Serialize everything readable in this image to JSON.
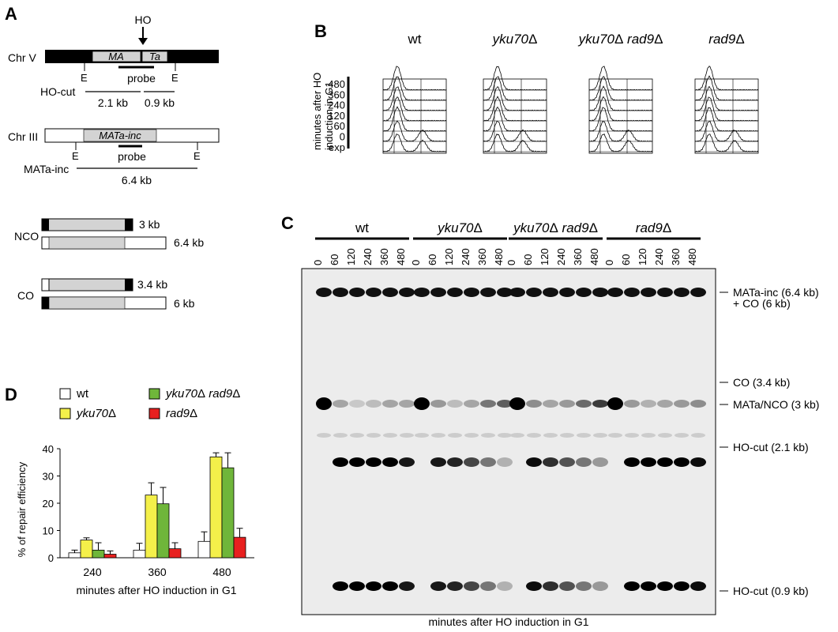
{
  "panels": {
    "a": "A",
    "b": "B",
    "c": "C",
    "d": "D"
  },
  "panel_a": {
    "ho_label": "HO",
    "chr_v": {
      "label": "Chr V",
      "ma": "MA",
      "ta": "Ta",
      "probe": "probe",
      "e1": "E",
      "e2": "E",
      "frag_label": "HO-cut",
      "frag1": "2.1 kb",
      "frag2": "0.9 kb"
    },
    "chr_iii": {
      "label": "Chr III",
      "inner": "MATa-inc",
      "probe": "probe",
      "e1": "E",
      "e2": "E",
      "frag_label": "MATa-inc",
      "frag": "6.4 kb"
    },
    "nco": {
      "label": "NCO",
      "size1": "3 kb",
      "size2": "6.4 kb"
    },
    "co": {
      "label": "CO",
      "size1": "3.4 kb",
      "size2": "6 kb"
    }
  },
  "panel_b": {
    "ylabel_line1": "minutes after HO",
    "ylabel_line2": "induction in G1",
    "times": [
      "480",
      "360",
      "240",
      "120",
      "60",
      "0",
      "exp"
    ],
    "strains": [
      "wt",
      "yku70Δ",
      "yku70Δ rad9Δ",
      "rad9Δ"
    ]
  },
  "panel_c": {
    "strains": [
      "wt",
      "yku70Δ",
      "yku70Δ rad9Δ",
      "rad9Δ"
    ],
    "lanes": [
      "0",
      "60",
      "120",
      "240",
      "360",
      "480"
    ],
    "bands": [
      "MATa-inc (6.4 kb)",
      "+ CO (6 kb)",
      "CO (3.4 kb)",
      "MATa/NCO (3 kb)",
      "HO-cut (2.1 kb)",
      "HO-cut (0.9 kb)"
    ],
    "xlabel": "minutes after HO induction in G1"
  },
  "chart_data": {
    "type": "bar",
    "categories": [
      "240",
      "360",
      "480"
    ],
    "series": [
      {
        "name": "wt",
        "color": "#ffffff",
        "values": [
          1.8,
          2.8,
          6.0
        ],
        "errors": [
          1.0,
          2.5,
          3.5
        ]
      },
      {
        "name": "yku70Δ",
        "color": "#f4f04a",
        "values": [
          6.5,
          23.0,
          37.0
        ],
        "errors": [
          0.8,
          4.5,
          1.5
        ]
      },
      {
        "name": "yku70Δ rad9Δ",
        "color": "#6fb63a",
        "values": [
          2.8,
          19.8,
          33.0
        ],
        "errors": [
          2.7,
          6.0,
          5.5
        ]
      },
      {
        "name": "rad9Δ",
        "color": "#e8201f",
        "values": [
          1.3,
          3.3,
          7.5
        ],
        "errors": [
          1.2,
          2.2,
          3.3
        ]
      }
    ],
    "ylabel": "% of repair efficiency",
    "xlabel": "minutes after HO induction in G1",
    "ylim": [
      0,
      40
    ],
    "yticks": [
      "0",
      "10",
      "20",
      "30",
      "40"
    ]
  }
}
